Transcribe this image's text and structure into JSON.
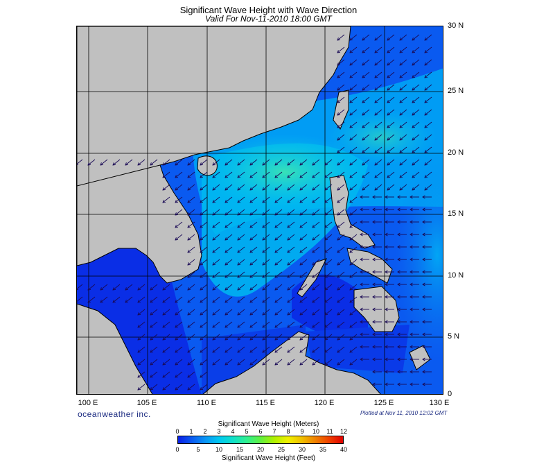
{
  "title": "Significant Wave Height with Wave Direction",
  "subtitle": "Valid For Nov-11-2010 18:00 GMT",
  "lat_labels": [
    "30 N",
    "25 N",
    "20 N",
    "15 N",
    "10 N",
    "5 N",
    "0"
  ],
  "lon_labels": [
    "100 E",
    "105 E",
    "110 E",
    "115 E",
    "120 E",
    "125 E",
    "130 E"
  ],
  "brand": "oceanweather inc.",
  "plotted": "Plotted at Nov 11, 2010 12:02 GMT",
  "colorbar": {
    "title_meters": "Significant Wave Height (Meters)",
    "title_feet": "Significant Wave Height (Feet)",
    "meters": [
      "0",
      "1",
      "2",
      "3",
      "4",
      "5",
      "6",
      "7",
      "8",
      "9",
      "10",
      "11",
      "12"
    ],
    "feet": [
      "0",
      "5",
      "10",
      "15",
      "20",
      "25",
      "30",
      "35",
      "40"
    ],
    "colors": [
      "#0a1ee6",
      "#0a5af0",
      "#0a96f5",
      "#00c8f0",
      "#10e0c8",
      "#30f090",
      "#60f040",
      "#b0f000",
      "#f0f000",
      "#f0c000",
      "#f08000",
      "#f04000",
      "#e00000"
    ]
  },
  "map": {
    "lon_range": [
      99,
      130
    ],
    "lat_range": [
      0,
      30
    ],
    "land_color": "#c0c0c0",
    "wave_direction": "mostly toward southwest (northeast monsoon swell); westward east of the Philippines"
  }
}
